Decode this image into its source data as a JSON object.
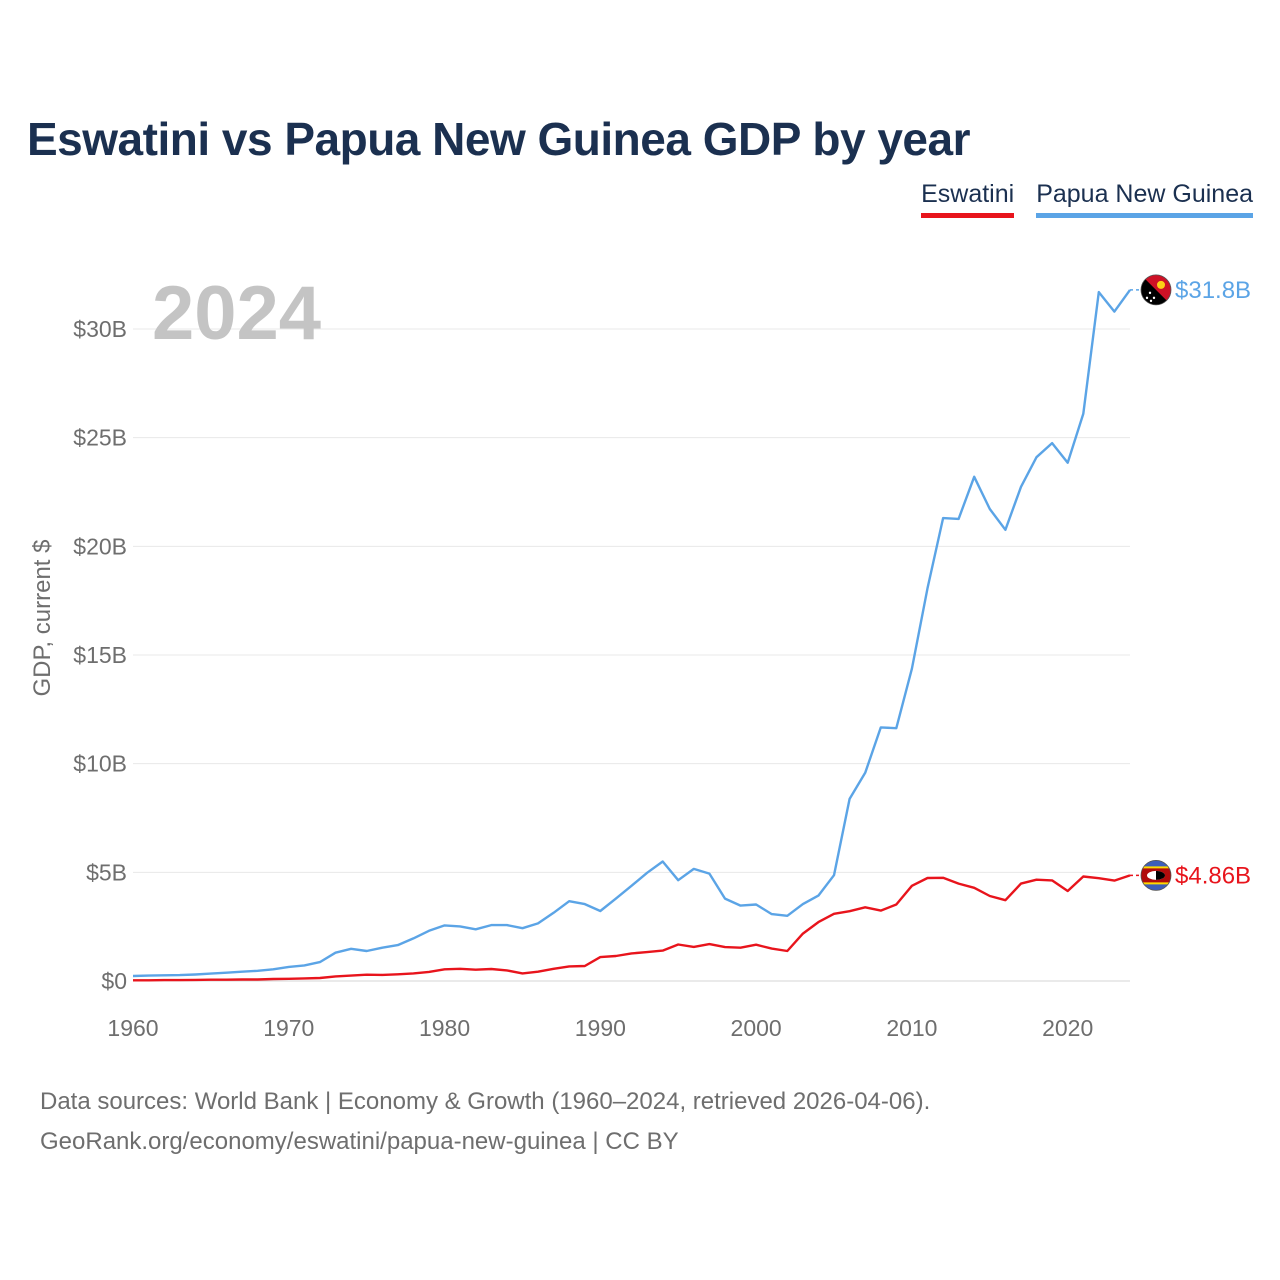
{
  "title": "Eswatini vs Papua New Guinea GDP by year",
  "legend": {
    "eswatini": "Eswatini",
    "png": "Papua New Guinea"
  },
  "colors": {
    "eswatini": "#e8141c",
    "png": "#5ba4e6",
    "title": "#1b3050",
    "axis": "#6e6e6e",
    "year_watermark": "#c4c4c4"
  },
  "year_watermark": "2024",
  "source": {
    "line1": "Data sources: World Bank | Economy & Growth (1960–2024, retrieved 2026-04-06).",
    "line2": "GeoRank.org/economy/eswatini/papua-new-guinea | CC BY"
  },
  "chart_data": {
    "type": "line",
    "title": "Eswatini vs Papua New Guinea GDP by year",
    "xlabel": "",
    "ylabel": "GDP, current $",
    "xlim": [
      1960,
      2024
    ],
    "ylim": [
      0,
      32
    ],
    "grid": true,
    "legend_position": "top-right",
    "x_ticks": [
      1960,
      1970,
      1980,
      1990,
      2000,
      2010,
      2020
    ],
    "y_ticks": [
      0,
      5,
      10,
      15,
      20,
      25,
      30
    ],
    "y_tick_labels": [
      "$0",
      "$5B",
      "$10B",
      "$15B",
      "$20B",
      "$25B",
      "$30B"
    ],
    "x": [
      1960,
      1961,
      1962,
      1963,
      1964,
      1965,
      1966,
      1967,
      1968,
      1969,
      1970,
      1971,
      1972,
      1973,
      1974,
      1975,
      1976,
      1977,
      1978,
      1979,
      1980,
      1981,
      1982,
      1983,
      1984,
      1985,
      1986,
      1987,
      1988,
      1989,
      1990,
      1991,
      1992,
      1993,
      1994,
      1995,
      1996,
      1997,
      1998,
      1999,
      2000,
      2001,
      2002,
      2003,
      2004,
      2005,
      2006,
      2007,
      2008,
      2009,
      2010,
      2011,
      2012,
      2013,
      2014,
      2015,
      2016,
      2017,
      2018,
      2019,
      2020,
      2021,
      2022,
      2023,
      2024
    ],
    "series": [
      {
        "name": "Papua New Guinea",
        "end_label": "$31.8B",
        "values": [
          0.23,
          0.25,
          0.26,
          0.27,
          0.3,
          0.34,
          0.38,
          0.43,
          0.47,
          0.54,
          0.65,
          0.72,
          0.87,
          1.3,
          1.48,
          1.38,
          1.53,
          1.65,
          1.96,
          2.31,
          2.56,
          2.51,
          2.38,
          2.57,
          2.57,
          2.43,
          2.65,
          3.14,
          3.67,
          3.54,
          3.22,
          3.79,
          4.38,
          4.98,
          5.5,
          4.64,
          5.16,
          4.94,
          3.79,
          3.47,
          3.52,
          3.08,
          3.0,
          3.54,
          3.93,
          4.87,
          8.38,
          9.58,
          11.67,
          11.63,
          14.37,
          18.07,
          21.3,
          21.26,
          23.2,
          21.72,
          20.76,
          22.74,
          24.1,
          24.75,
          23.85,
          26.1,
          31.7,
          30.8,
          31.8
        ]
      },
      {
        "name": "Eswatini",
        "end_label": "$4.86B",
        "values": [
          0.03,
          0.03,
          0.04,
          0.04,
          0.05,
          0.06,
          0.06,
          0.07,
          0.07,
          0.09,
          0.1,
          0.12,
          0.14,
          0.21,
          0.25,
          0.29,
          0.28,
          0.31,
          0.35,
          0.42,
          0.54,
          0.56,
          0.52,
          0.55,
          0.49,
          0.35,
          0.43,
          0.56,
          0.67,
          0.69,
          1.1,
          1.15,
          1.27,
          1.33,
          1.4,
          1.68,
          1.57,
          1.7,
          1.56,
          1.53,
          1.67,
          1.49,
          1.38,
          2.18,
          2.71,
          3.09,
          3.21,
          3.39,
          3.24,
          3.52,
          4.38,
          4.74,
          4.75,
          4.48,
          4.29,
          3.91,
          3.72,
          4.48,
          4.66,
          4.63,
          4.14,
          4.81,
          4.73,
          4.62,
          4.86
        ]
      }
    ]
  }
}
